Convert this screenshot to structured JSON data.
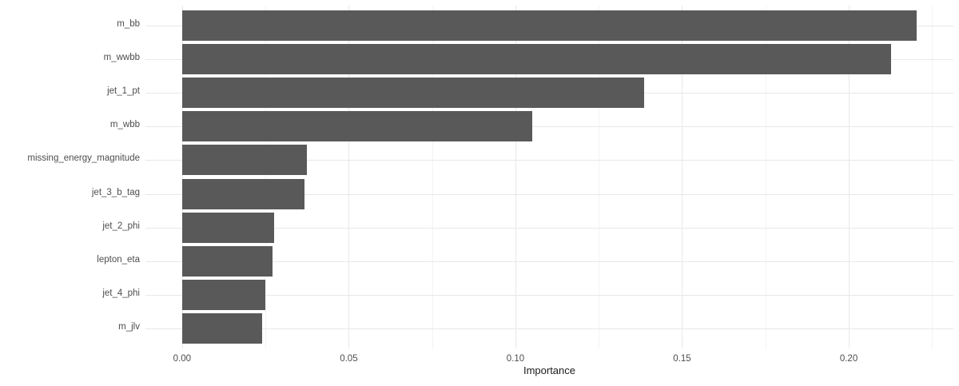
{
  "chart_data": {
    "type": "bar",
    "orientation": "horizontal",
    "title": "",
    "xlabel": "Importance",
    "ylabel": "",
    "categories": [
      "m_bb",
      "m_wwbb",
      "jet_1_pt",
      "m_wbb",
      "missing_energy_magnitude",
      "jet_3_b_tag",
      "jet_2_phi",
      "lepton_eta",
      "jet_4_phi",
      "m_jlv"
    ],
    "values": [
      0.2204,
      0.2127,
      0.1386,
      0.105,
      0.0374,
      0.0367,
      0.0276,
      0.0271,
      0.0249,
      0.024
    ],
    "x_ticks": [
      {
        "value": 0.0,
        "label": "0.00"
      },
      {
        "value": 0.05,
        "label": "0.05"
      },
      {
        "value": 0.1,
        "label": "0.10"
      },
      {
        "value": 0.15,
        "label": "0.15"
      },
      {
        "value": 0.2,
        "label": "0.20"
      }
    ],
    "x_minor_ticks": [
      0.025,
      0.075,
      0.125,
      0.175,
      0.225
    ],
    "xlim": [
      -0.011,
      0.2314
    ],
    "grid": "major+minor",
    "legend": "none",
    "colors": {
      "bar": "#595959",
      "grid_major": "#e8e8e8",
      "grid_minor": "#f3f3f3",
      "axis_text": "#4d4d4d",
      "axis_title": "#1a1a1a",
      "background": "#ffffff"
    }
  }
}
